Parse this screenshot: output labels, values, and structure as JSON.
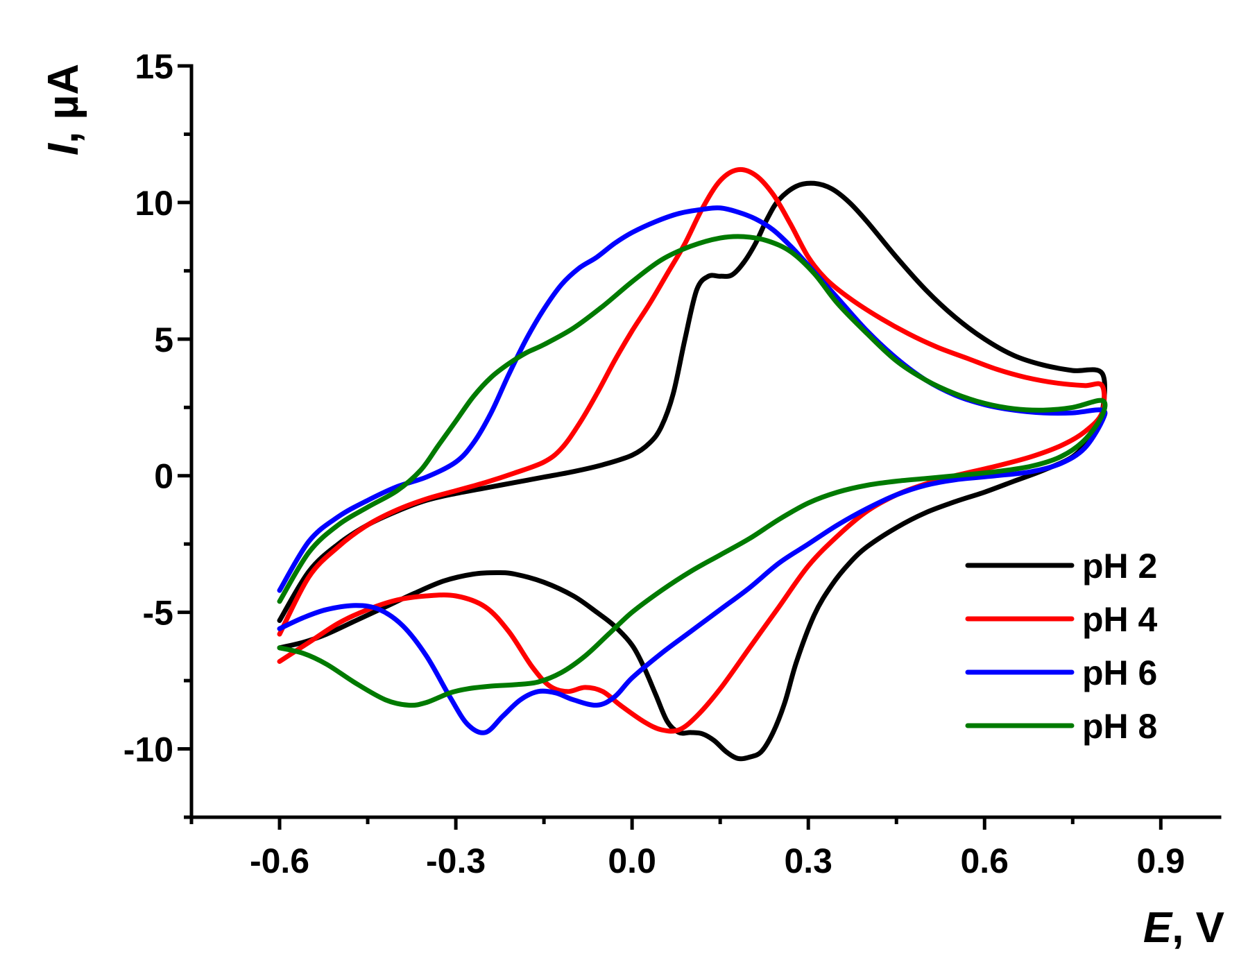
{
  "chart_data": {
    "type": "line",
    "title": "",
    "xlabel": {
      "symbol": "E",
      "unit": ", V"
    },
    "ylabel": {
      "symbol": "I",
      "unit": ", µA"
    },
    "xlim": [
      -0.75,
      1.0
    ],
    "ylim": [
      -12.5,
      15
    ],
    "x_ticks": [
      {
        "value": -0.6,
        "label": "-0.6"
      },
      {
        "value": -0.3,
        "label": "-0.3"
      },
      {
        "value": 0.0,
        "label": "0.0"
      },
      {
        "value": 0.3,
        "label": "0.3"
      },
      {
        "value": 0.6,
        "label": "0.6"
      },
      {
        "value": 0.9,
        "label": "0.9"
      }
    ],
    "x_minor_ticks": [
      -0.75,
      -0.45,
      -0.15,
      0.15,
      0.45,
      0.75
    ],
    "y_ticks": [
      {
        "value": 15,
        "label": "15"
      },
      {
        "value": 10,
        "label": "10"
      },
      {
        "value": 5,
        "label": "5"
      },
      {
        "value": 0,
        "label": "0"
      },
      {
        "value": -5,
        "label": "-5"
      },
      {
        "value": -10,
        "label": "-10"
      }
    ],
    "y_minor_ticks": [
      12.5,
      7.5,
      2.5,
      -2.5,
      -7.5,
      -12.5
    ],
    "grid": false,
    "legend_position": "bottom-right",
    "series": [
      {
        "name": "pH 2",
        "color": "#000000",
        "points": [
          [
            -0.6,
            -5.3
          ],
          [
            -0.55,
            -3.5
          ],
          [
            -0.5,
            -2.5
          ],
          [
            -0.45,
            -1.8
          ],
          [
            -0.4,
            -1.3
          ],
          [
            -0.35,
            -0.9
          ],
          [
            -0.3,
            -0.65
          ],
          [
            -0.25,
            -0.45
          ],
          [
            -0.2,
            -0.25
          ],
          [
            -0.15,
            -0.05
          ],
          [
            -0.1,
            0.15
          ],
          [
            -0.05,
            0.4
          ],
          [
            0.0,
            0.75
          ],
          [
            0.03,
            1.2
          ],
          [
            0.05,
            1.8
          ],
          [
            0.07,
            3.0
          ],
          [
            0.09,
            5.0
          ],
          [
            0.11,
            6.8
          ],
          [
            0.13,
            7.3
          ],
          [
            0.15,
            7.3
          ],
          [
            0.17,
            7.35
          ],
          [
            0.19,
            7.8
          ],
          [
            0.21,
            8.5
          ],
          [
            0.23,
            9.4
          ],
          [
            0.25,
            10.1
          ],
          [
            0.28,
            10.6
          ],
          [
            0.31,
            10.7
          ],
          [
            0.34,
            10.5
          ],
          [
            0.37,
            10.0
          ],
          [
            0.4,
            9.3
          ],
          [
            0.45,
            8.0
          ],
          [
            0.5,
            6.8
          ],
          [
            0.55,
            5.8
          ],
          [
            0.6,
            5.0
          ],
          [
            0.65,
            4.4
          ],
          [
            0.7,
            4.05
          ],
          [
            0.75,
            3.85
          ],
          [
            0.8,
            3.75
          ],
          [
            0.8,
            2.3
          ],
          [
            0.78,
            1.4
          ],
          [
            0.75,
            0.7
          ],
          [
            0.7,
            0.2
          ],
          [
            0.65,
            -0.2
          ],
          [
            0.6,
            -0.6
          ],
          [
            0.55,
            -0.95
          ],
          [
            0.5,
            -1.35
          ],
          [
            0.45,
            -1.9
          ],
          [
            0.4,
            -2.6
          ],
          [
            0.37,
            -3.2
          ],
          [
            0.34,
            -4.0
          ],
          [
            0.31,
            -5.1
          ],
          [
            0.28,
            -6.8
          ],
          [
            0.26,
            -8.3
          ],
          [
            0.24,
            -9.4
          ],
          [
            0.22,
            -10.1
          ],
          [
            0.2,
            -10.3
          ],
          [
            0.18,
            -10.35
          ],
          [
            0.16,
            -10.1
          ],
          [
            0.14,
            -9.7
          ],
          [
            0.12,
            -9.45
          ],
          [
            0.1,
            -9.4
          ],
          [
            0.08,
            -9.4
          ],
          [
            0.06,
            -9.0
          ],
          [
            0.04,
            -8.0
          ],
          [
            0.02,
            -7.0
          ],
          [
            0.0,
            -6.2
          ],
          [
            -0.03,
            -5.5
          ],
          [
            -0.06,
            -5.0
          ],
          [
            -0.1,
            -4.4
          ],
          [
            -0.15,
            -3.9
          ],
          [
            -0.2,
            -3.6
          ],
          [
            -0.23,
            -3.55
          ],
          [
            -0.27,
            -3.6
          ],
          [
            -0.32,
            -3.85
          ],
          [
            -0.37,
            -4.3
          ],
          [
            -0.42,
            -4.8
          ],
          [
            -0.47,
            -5.3
          ],
          [
            -0.52,
            -5.8
          ],
          [
            -0.56,
            -6.1
          ],
          [
            -0.6,
            -6.3
          ]
        ]
      },
      {
        "name": "pH 4",
        "color": "#ff0000",
        "points": [
          [
            -0.6,
            -5.8
          ],
          [
            -0.55,
            -3.7
          ],
          [
            -0.5,
            -2.6
          ],
          [
            -0.45,
            -1.8
          ],
          [
            -0.4,
            -1.25
          ],
          [
            -0.35,
            -0.85
          ],
          [
            -0.3,
            -0.55
          ],
          [
            -0.25,
            -0.25
          ],
          [
            -0.2,
            0.1
          ],
          [
            -0.15,
            0.5
          ],
          [
            -0.12,
            1.0
          ],
          [
            -0.09,
            1.9
          ],
          [
            -0.06,
            3.0
          ],
          [
            -0.03,
            4.2
          ],
          [
            0.0,
            5.3
          ],
          [
            0.03,
            6.3
          ],
          [
            0.06,
            7.4
          ],
          [
            0.09,
            8.5
          ],
          [
            0.12,
            9.8
          ],
          [
            0.15,
            10.8
          ],
          [
            0.18,
            11.2
          ],
          [
            0.21,
            11.0
          ],
          [
            0.24,
            10.3
          ],
          [
            0.27,
            9.2
          ],
          [
            0.3,
            8.0
          ],
          [
            0.33,
            7.2
          ],
          [
            0.37,
            6.5
          ],
          [
            0.42,
            5.8
          ],
          [
            0.47,
            5.2
          ],
          [
            0.52,
            4.7
          ],
          [
            0.57,
            4.3
          ],
          [
            0.62,
            3.9
          ],
          [
            0.67,
            3.6
          ],
          [
            0.72,
            3.4
          ],
          [
            0.77,
            3.3
          ],
          [
            0.8,
            3.3
          ],
          [
            0.8,
            2.3
          ],
          [
            0.77,
            1.6
          ],
          [
            0.73,
            1.1
          ],
          [
            0.68,
            0.7
          ],
          [
            0.62,
            0.35
          ],
          [
            0.55,
            0.0
          ],
          [
            0.5,
            -0.3
          ],
          [
            0.45,
            -0.7
          ],
          [
            0.4,
            -1.3
          ],
          [
            0.35,
            -2.2
          ],
          [
            0.3,
            -3.3
          ],
          [
            0.25,
            -4.8
          ],
          [
            0.2,
            -6.3
          ],
          [
            0.15,
            -7.8
          ],
          [
            0.11,
            -8.8
          ],
          [
            0.08,
            -9.3
          ],
          [
            0.05,
            -9.3
          ],
          [
            0.02,
            -9.0
          ],
          [
            -0.02,
            -8.4
          ],
          [
            -0.05,
            -7.9
          ],
          [
            -0.08,
            -7.75
          ],
          [
            -0.11,
            -7.9
          ],
          [
            -0.14,
            -7.7
          ],
          [
            -0.17,
            -7.0
          ],
          [
            -0.21,
            -5.7
          ],
          [
            -0.25,
            -4.8
          ],
          [
            -0.3,
            -4.4
          ],
          [
            -0.35,
            -4.4
          ],
          [
            -0.4,
            -4.55
          ],
          [
            -0.45,
            -4.9
          ],
          [
            -0.5,
            -5.4
          ],
          [
            -0.55,
            -6.1
          ],
          [
            -0.6,
            -6.8
          ]
        ]
      },
      {
        "name": "pH 6",
        "color": "#0000ff",
        "points": [
          [
            -0.6,
            -4.2
          ],
          [
            -0.55,
            -2.4
          ],
          [
            -0.5,
            -1.5
          ],
          [
            -0.45,
            -0.9
          ],
          [
            -0.4,
            -0.4
          ],
          [
            -0.35,
            -0.05
          ],
          [
            -0.3,
            0.5
          ],
          [
            -0.27,
            1.2
          ],
          [
            -0.24,
            2.3
          ],
          [
            -0.21,
            3.7
          ],
          [
            -0.18,
            5.0
          ],
          [
            -0.15,
            6.1
          ],
          [
            -0.12,
            7.0
          ],
          [
            -0.09,
            7.6
          ],
          [
            -0.06,
            8.0
          ],
          [
            -0.03,
            8.5
          ],
          [
            0.0,
            8.9
          ],
          [
            0.04,
            9.3
          ],
          [
            0.08,
            9.6
          ],
          [
            0.12,
            9.75
          ],
          [
            0.15,
            9.8
          ],
          [
            0.18,
            9.65
          ],
          [
            0.21,
            9.4
          ],
          [
            0.24,
            9.0
          ],
          [
            0.27,
            8.4
          ],
          [
            0.3,
            7.7
          ],
          [
            0.35,
            6.5
          ],
          [
            0.4,
            5.3
          ],
          [
            0.45,
            4.3
          ],
          [
            0.5,
            3.5
          ],
          [
            0.55,
            2.95
          ],
          [
            0.6,
            2.6
          ],
          [
            0.65,
            2.4
          ],
          [
            0.7,
            2.3
          ],
          [
            0.75,
            2.3
          ],
          [
            0.8,
            2.4
          ],
          [
            0.8,
            2.0
          ],
          [
            0.77,
            1.0
          ],
          [
            0.73,
            0.45
          ],
          [
            0.68,
            0.15
          ],
          [
            0.62,
            0.0
          ],
          [
            0.55,
            -0.15
          ],
          [
            0.5,
            -0.35
          ],
          [
            0.45,
            -0.7
          ],
          [
            0.4,
            -1.2
          ],
          [
            0.35,
            -1.8
          ],
          [
            0.3,
            -2.5
          ],
          [
            0.25,
            -3.2
          ],
          [
            0.2,
            -4.1
          ],
          [
            0.15,
            -4.9
          ],
          [
            0.1,
            -5.7
          ],
          [
            0.05,
            -6.5
          ],
          [
            0.0,
            -7.4
          ],
          [
            -0.03,
            -8.1
          ],
          [
            -0.06,
            -8.4
          ],
          [
            -0.1,
            -8.2
          ],
          [
            -0.13,
            -7.95
          ],
          [
            -0.16,
            -7.9
          ],
          [
            -0.19,
            -8.2
          ],
          [
            -0.22,
            -8.8
          ],
          [
            -0.25,
            -9.4
          ],
          [
            -0.28,
            -9.1
          ],
          [
            -0.31,
            -8.1
          ],
          [
            -0.35,
            -6.6
          ],
          [
            -0.39,
            -5.5
          ],
          [
            -0.43,
            -4.9
          ],
          [
            -0.47,
            -4.75
          ],
          [
            -0.52,
            -4.9
          ],
          [
            -0.56,
            -5.2
          ],
          [
            -0.6,
            -5.6
          ]
        ]
      },
      {
        "name": "pH 8",
        "color": "#007a00",
        "points": [
          [
            -0.6,
            -4.6
          ],
          [
            -0.55,
            -2.8
          ],
          [
            -0.5,
            -1.8
          ],
          [
            -0.45,
            -1.15
          ],
          [
            -0.4,
            -0.55
          ],
          [
            -0.36,
            0.2
          ],
          [
            -0.33,
            1.1
          ],
          [
            -0.3,
            2.0
          ],
          [
            -0.27,
            2.9
          ],
          [
            -0.24,
            3.6
          ],
          [
            -0.21,
            4.1
          ],
          [
            -0.18,
            4.5
          ],
          [
            -0.15,
            4.8
          ],
          [
            -0.1,
            5.4
          ],
          [
            -0.05,
            6.2
          ],
          [
            0.0,
            7.1
          ],
          [
            0.05,
            7.9
          ],
          [
            0.1,
            8.4
          ],
          [
            0.15,
            8.7
          ],
          [
            0.19,
            8.75
          ],
          [
            0.23,
            8.6
          ],
          [
            0.27,
            8.2
          ],
          [
            0.31,
            7.4
          ],
          [
            0.35,
            6.3
          ],
          [
            0.4,
            5.2
          ],
          [
            0.45,
            4.2
          ],
          [
            0.5,
            3.5
          ],
          [
            0.55,
            3.0
          ],
          [
            0.6,
            2.65
          ],
          [
            0.65,
            2.45
          ],
          [
            0.7,
            2.4
          ],
          [
            0.75,
            2.5
          ],
          [
            0.8,
            2.75
          ],
          [
            0.8,
            2.2
          ],
          [
            0.77,
            1.3
          ],
          [
            0.73,
            0.7
          ],
          [
            0.68,
            0.35
          ],
          [
            0.62,
            0.15
          ],
          [
            0.55,
            0.0
          ],
          [
            0.5,
            -0.1
          ],
          [
            0.45,
            -0.2
          ],
          [
            0.4,
            -0.35
          ],
          [
            0.35,
            -0.6
          ],
          [
            0.3,
            -1.0
          ],
          [
            0.25,
            -1.6
          ],
          [
            0.2,
            -2.3
          ],
          [
            0.15,
            -2.9
          ],
          [
            0.1,
            -3.5
          ],
          [
            0.05,
            -4.2
          ],
          [
            0.0,
            -5.0
          ],
          [
            -0.04,
            -5.8
          ],
          [
            -0.08,
            -6.6
          ],
          [
            -0.12,
            -7.2
          ],
          [
            -0.16,
            -7.55
          ],
          [
            -0.2,
            -7.65
          ],
          [
            -0.24,
            -7.7
          ],
          [
            -0.28,
            -7.8
          ],
          [
            -0.31,
            -7.95
          ],
          [
            -0.35,
            -8.3
          ],
          [
            -0.38,
            -8.4
          ],
          [
            -0.42,
            -8.2
          ],
          [
            -0.47,
            -7.6
          ],
          [
            -0.52,
            -6.9
          ],
          [
            -0.56,
            -6.5
          ],
          [
            -0.6,
            -6.3
          ]
        ]
      }
    ]
  }
}
